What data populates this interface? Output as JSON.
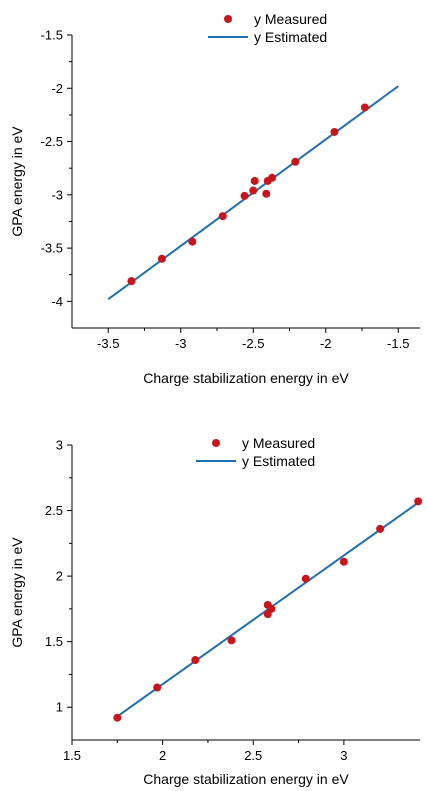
{
  "chart_data": [
    {
      "type": "scatter",
      "xlabel": "Charge stabilization energy in eV",
      "ylabel": "GPA energy in eV",
      "xlim": [
        -3.75,
        -1.35
      ],
      "ylim": [
        -4.25,
        -1.5
      ],
      "xticks": [
        "-3.5",
        "-3",
        "-2.5",
        "-2",
        "-1.5"
      ],
      "yticks": [
        "-4",
        "-3.5",
        "-3",
        "-2.5",
        "-2",
        "-1.5"
      ],
      "legend": "top-center",
      "series": [
        {
          "name": "y Measured",
          "kind": "points",
          "color": "#c8161d",
          "x": [
            -3.34,
            -3.13,
            -2.92,
            -2.71,
            -2.56,
            -2.5,
            -2.49,
            -2.41,
            -2.4,
            -2.37,
            -2.21,
            -1.94,
            -1.73
          ],
          "y": [
            -3.81,
            -3.6,
            -3.44,
            -3.2,
            -3.01,
            -2.96,
            -2.87,
            -2.99,
            -2.87,
            -2.84,
            -2.69,
            -2.41,
            -2.18
          ]
        },
        {
          "name": "y Estimated",
          "kind": "line",
          "color": "#1f6fb5",
          "x": [
            -3.5,
            -1.5
          ],
          "y": [
            -3.98,
            -1.98
          ]
        }
      ]
    },
    {
      "type": "scatter",
      "xlabel": "Charge stabilization energy in eV",
      "ylabel": "GPA energy in eV",
      "xlim": [
        1.5,
        3.42
      ],
      "ylim": [
        0.75,
        3.0
      ],
      "xticks": [
        "1.5",
        "2",
        "2.5",
        "3"
      ],
      "yticks": [
        "1",
        "1.5",
        "2",
        "2.5",
        "3"
      ],
      "legend": "top-center",
      "series": [
        {
          "name": "y Measured",
          "kind": "points",
          "color": "#c8161d",
          "x": [
            1.75,
            1.97,
            2.18,
            2.38,
            2.58,
            2.58,
            2.6,
            2.79,
            3.0,
            3.2,
            3.41
          ],
          "y": [
            0.92,
            1.15,
            1.36,
            1.51,
            1.78,
            1.71,
            1.75,
            1.98,
            2.11,
            2.36,
            2.57
          ]
        },
        {
          "name": "y Estimated",
          "kind": "line",
          "color": "#1f6fb5",
          "x": [
            1.75,
            3.4
          ],
          "y": [
            0.93,
            2.55
          ]
        }
      ]
    }
  ]
}
